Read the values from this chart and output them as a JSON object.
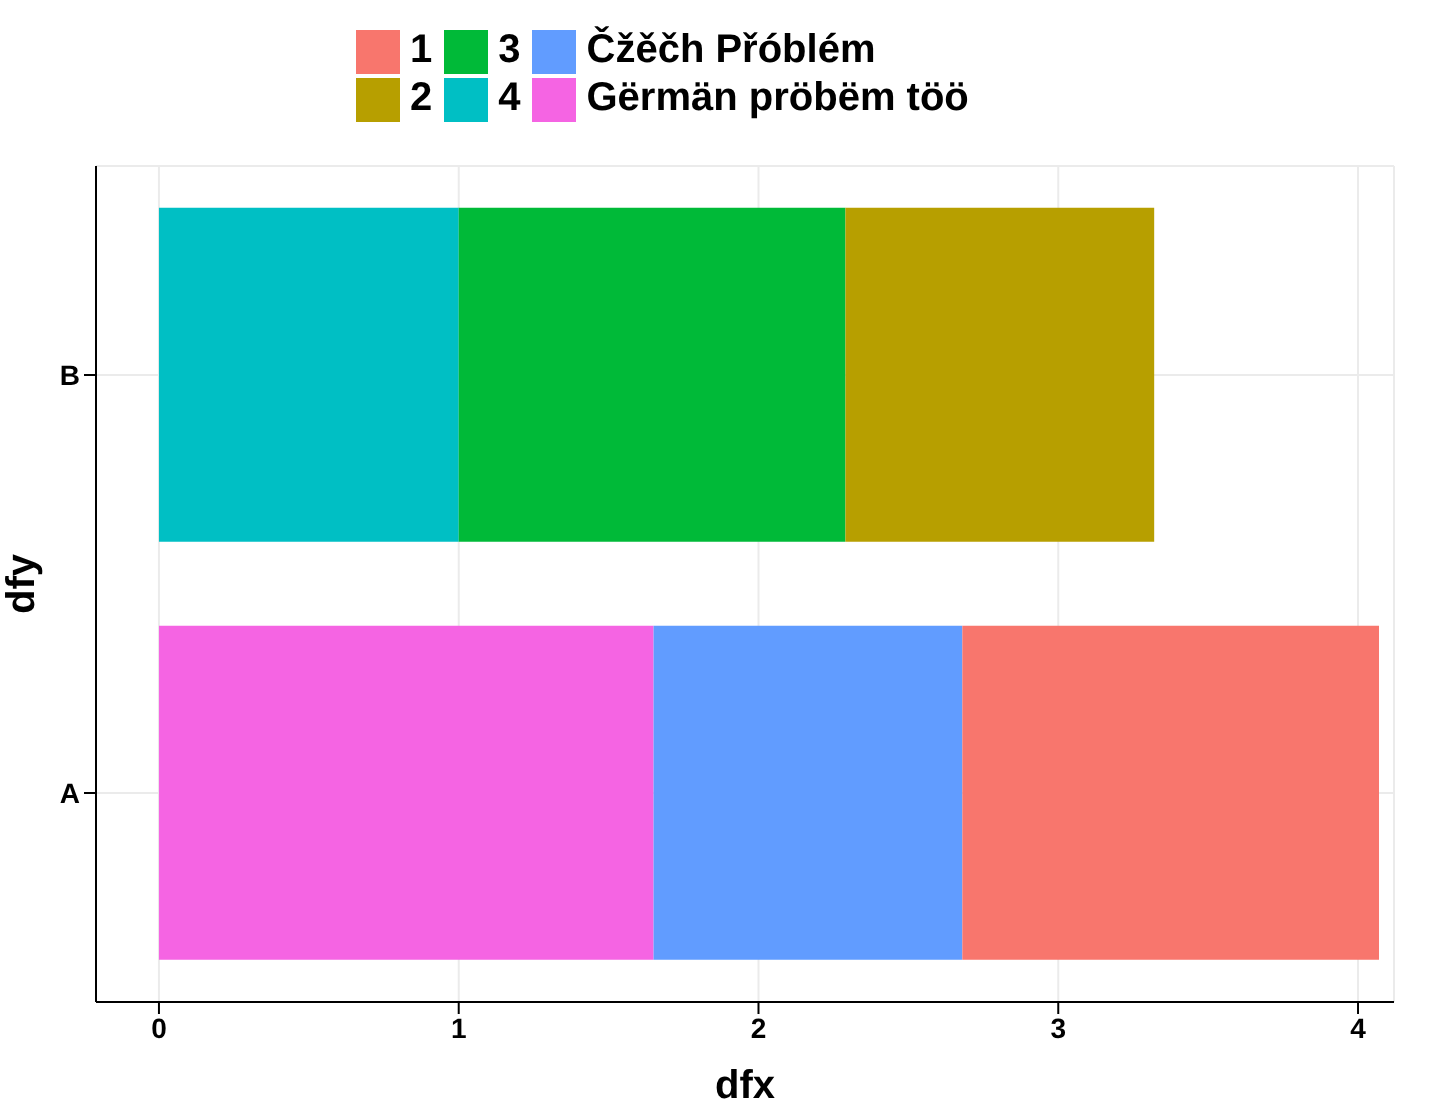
{
  "chart_data": {
    "type": "bar",
    "orientation": "horizontal",
    "stacked": true,
    "xlabel": "dfx",
    "ylabel": "dfy",
    "categories": [
      "B",
      "A"
    ],
    "series": [
      {
        "name": "Gërmän pröbëm töö",
        "color": "#f564e3",
        "values": [
          null,
          1.65
        ]
      },
      {
        "name": "Čžěčh Přóblém",
        "color": "#619cff",
        "values": [
          null,
          1.03
        ]
      },
      {
        "name": "4",
        "color": "#00bfc4",
        "values": [
          1.0,
          null
        ]
      },
      {
        "name": "3",
        "color": "#00ba38",
        "values": [
          1.29,
          null
        ]
      },
      {
        "name": "2",
        "color": "#b79f00",
        "values": [
          1.03,
          null
        ]
      },
      {
        "name": "1",
        "color": "#f8766d",
        "values": [
          null,
          1.39
        ]
      }
    ],
    "xlim": [
      -0.21,
      4.12
    ],
    "xticks": [
      0,
      1,
      2,
      3,
      4
    ],
    "grid": true,
    "legend": "top"
  }
}
